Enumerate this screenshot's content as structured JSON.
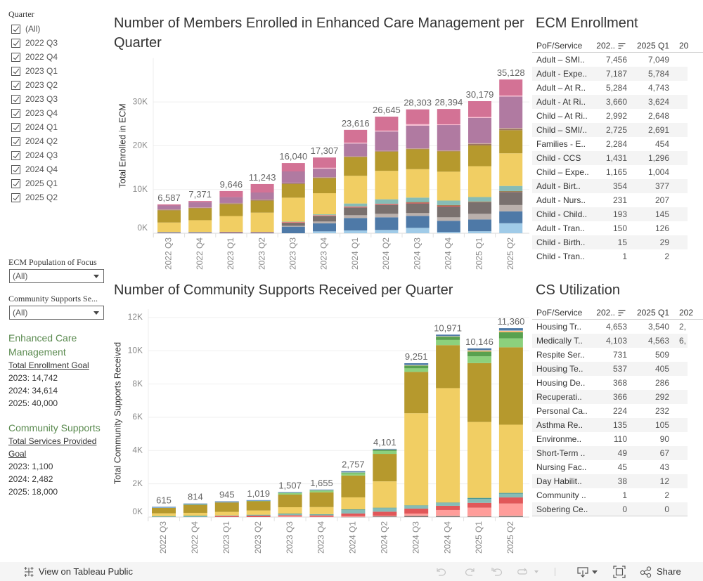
{
  "filters": {
    "quarter": {
      "label": "Quarter",
      "options": [
        {
          "label": "(All)",
          "checked": true
        },
        {
          "label": "2022 Q3",
          "checked": true
        },
        {
          "label": "2022 Q4",
          "checked": true
        },
        {
          "label": "2023 Q1",
          "checked": true
        },
        {
          "label": "2023 Q2",
          "checked": true
        },
        {
          "label": "2023 Q3",
          "checked": true
        },
        {
          "label": "2023 Q4",
          "checked": true
        },
        {
          "label": "2024 Q1",
          "checked": true
        },
        {
          "label": "2024 Q2",
          "checked": true
        },
        {
          "label": "2024 Q3",
          "checked": true
        },
        {
          "label": "2024 Q4",
          "checked": true
        },
        {
          "label": "2025 Q1",
          "checked": true
        },
        {
          "label": "2025 Q2",
          "checked": true
        }
      ]
    },
    "ecm_pof": {
      "label": "ECM Population of Focus",
      "value": "(All)"
    },
    "cs_service": {
      "label": "Community Supports Se...",
      "value": "(All)"
    }
  },
  "goals": {
    "ecm": {
      "heading": "Enhanced Care Management",
      "subheading": "Total Enrollment Goal",
      "lines": [
        "2023: 14,742",
        "2024: 34,614",
        "2025: 40,000"
      ]
    },
    "cs": {
      "heading": "Community Supports",
      "subheading": "Total Services Provided Goal",
      "lines": [
        "2023: 1,100",
        "2024: 2,482",
        "2025: 18,000"
      ]
    }
  },
  "ecm_table": {
    "title": "ECM Enrollment",
    "columns": [
      "PoF/Service",
      "202..",
      "2025 Q1",
      "20"
    ],
    "rows": [
      {
        "name": "Adult – SMI..",
        "v1": "7,456",
        "v2": "7,049",
        "v3": ""
      },
      {
        "name": "Adult - Expe..",
        "v1": "7,187",
        "v2": "5,784",
        "v3": ""
      },
      {
        "name": "Adult – At R..",
        "v1": "5,284",
        "v2": "4,743",
        "v3": ""
      },
      {
        "name": "Adult - At Ri..",
        "v1": "3,660",
        "v2": "3,624",
        "v3": ""
      },
      {
        "name": "Child – At Ri..",
        "v1": "2,992",
        "v2": "2,648",
        "v3": ""
      },
      {
        "name": "Child – SMI/..",
        "v1": "2,725",
        "v2": "2,691",
        "v3": ""
      },
      {
        "name": "Families - E..",
        "v1": "2,284",
        "v2": "454",
        "v3": ""
      },
      {
        "name": "Child - CCS",
        "v1": "1,431",
        "v2": "1,296",
        "v3": ""
      },
      {
        "name": "Child – Expe..",
        "v1": "1,165",
        "v2": "1,004",
        "v3": ""
      },
      {
        "name": "Adult - Birt..",
        "v1": "354",
        "v2": "377",
        "v3": ""
      },
      {
        "name": "Adult - Nurs..",
        "v1": "231",
        "v2": "207",
        "v3": ""
      },
      {
        "name": "Child - Child..",
        "v1": "193",
        "v2": "145",
        "v3": ""
      },
      {
        "name": "Adult - Tran..",
        "v1": "150",
        "v2": "126",
        "v3": ""
      },
      {
        "name": "Child - Birth..",
        "v1": "15",
        "v2": "29",
        "v3": ""
      },
      {
        "name": "Child - Tran..",
        "v1": "1",
        "v2": "2",
        "v3": ""
      }
    ]
  },
  "cs_table": {
    "title": "CS Utilization",
    "columns": [
      "PoF/Service",
      "202..",
      "2025 Q1",
      "202"
    ],
    "rows": [
      {
        "name": "Housing Tr..",
        "v1": "4,653",
        "v2": "3,540",
        "v3": "2,"
      },
      {
        "name": "Medically T..",
        "v1": "4,103",
        "v2": "4,563",
        "v3": "6,"
      },
      {
        "name": "Respite Ser..",
        "v1": "731",
        "v2": "509",
        "v3": ""
      },
      {
        "name": "Housing Te..",
        "v1": "537",
        "v2": "405",
        "v3": ""
      },
      {
        "name": "Housing De..",
        "v1": "368",
        "v2": "286",
        "v3": ""
      },
      {
        "name": "Recuperati..",
        "v1": "366",
        "v2": "292",
        "v3": ""
      },
      {
        "name": "Personal Ca..",
        "v1": "224",
        "v2": "232",
        "v3": ""
      },
      {
        "name": "Asthma Re..",
        "v1": "135",
        "v2": "105",
        "v3": ""
      },
      {
        "name": "Environme..",
        "v1": "110",
        "v2": "90",
        "v3": ""
      },
      {
        "name": "Short-Term ..",
        "v1": "49",
        "v2": "67",
        "v3": ""
      },
      {
        "name": "Nursing Fac..",
        "v1": "45",
        "v2": "43",
        "v3": ""
      },
      {
        "name": "Day Habilit..",
        "v1": "38",
        "v2": "12",
        "v3": ""
      },
      {
        "name": "Community ..",
        "v1": "1",
        "v2": "2",
        "v3": ""
      },
      {
        "name": "Sobering Ce..",
        "v1": "0",
        "v2": "0",
        "v3": ""
      }
    ]
  },
  "toolbar": {
    "view_on_tableau": "View on Tableau Public",
    "share": "Share",
    "icons": [
      "tableau-logo-icon",
      "undo-icon",
      "redo-icon",
      "revert-icon",
      "refresh-icon",
      "download-icon",
      "fullscreen-icon",
      "share-icon"
    ]
  },
  "chart_data": [
    {
      "type": "bar",
      "stacked": true,
      "title": "Number of Members Enrolled in Enhanced Care Management per Quarter",
      "xlabel": "",
      "ylabel": "Total Enrolled in ECM",
      "ylim": [
        0,
        40000
      ],
      "yticks": [
        0,
        10000,
        20000,
        30000
      ],
      "ytick_labels": [
        "0K",
        "10K",
        "20K",
        "30K"
      ],
      "grid": true,
      "legend": "none",
      "categories": [
        "2022 Q3",
        "2022 Q4",
        "2023 Q1",
        "2023 Q2",
        "2023 Q3",
        "2023 Q4",
        "2024 Q1",
        "2024 Q2",
        "2024 Q3",
        "2024 Q4",
        "2025 Q1",
        "2025 Q2"
      ],
      "totals": [
        6587,
        7371,
        9646,
        11243,
        16040,
        17307,
        23616,
        26645,
        28303,
        28394,
        30179,
        35128
      ],
      "total_labels": [
        "6,587",
        "7,371",
        "9,646",
        "11,243",
        "16,040",
        "17,307",
        "23,616",
        "26,645",
        "28,303",
        "28,394",
        "30,179",
        "35,128"
      ],
      "series": [
        {
          "name": "Families - E..",
          "color": "#a0cbe8",
          "values": [
            0,
            0,
            0,
            0,
            0,
            430,
            640,
            750,
            1230,
            270,
            454,
            2284
          ]
        },
        {
          "name": "Child – SMI/..",
          "color": "#4e79a7",
          "values": [
            120,
            130,
            80,
            80,
            1500,
            1820,
            2840,
            2890,
            2740,
            2570,
            2691,
            2725
          ]
        },
        {
          "name": "Child - CCS",
          "color": "#bab0ac",
          "values": [
            0,
            0,
            0,
            0,
            200,
            430,
            640,
            800,
            640,
            800,
            1296,
            1431
          ]
        },
        {
          "name": "Child – At Ri..",
          "color": "#79706e",
          "values": [
            0,
            0,
            0,
            0,
            700,
            1290,
            1770,
            2090,
            2200,
            2470,
            2648,
            2992
          ]
        },
        {
          "name": "Child - Child..",
          "color": "#e15759",
          "values": [
            60,
            60,
            150,
            140,
            150,
            150,
            200,
            200,
            300,
            320,
            145,
            193
          ]
        },
        {
          "name": "Child - Birth..",
          "color": "#ff9d9a",
          "values": [
            0,
            0,
            0,
            0,
            5,
            5,
            10,
            10,
            15,
            15,
            29,
            15
          ]
        },
        {
          "name": "Child - Tran..",
          "color": "#59a14f",
          "values": [
            0,
            0,
            0,
            0,
            0,
            0,
            0,
            0,
            1,
            1,
            2,
            1
          ]
        },
        {
          "name": "Child – Expe..",
          "color": "#86bcb6",
          "values": [
            120,
            110,
            100,
            90,
            100,
            200,
            700,
            1020,
            1020,
            1020,
            1004,
            1165
          ]
        },
        {
          "name": "Adult – SMI..",
          "color": "#f1ce63",
          "values": [
            2150,
            2680,
            3600,
            4400,
            5470,
            4820,
            6320,
            6490,
            6490,
            6600,
            7049,
            7456
          ]
        },
        {
          "name": "Adult – At R..",
          "color": "#b6992d",
          "values": [
            2790,
            2730,
            2700,
            2740,
            3110,
            3430,
            4290,
            4400,
            4560,
            4650,
            4743,
            5284
          ]
        },
        {
          "name": "Adult - Birt..",
          "color": "#9d7660",
          "values": [
            150,
            120,
            200,
            180,
            200,
            180,
            100,
            150,
            150,
            150,
            377,
            354
          ]
        },
        {
          "name": "Adult - Tran..",
          "color": "#d7b5a6",
          "values": [
            50,
            40,
            80,
            70,
            60,
            70,
            50,
            50,
            50,
            50,
            126,
            150
          ]
        },
        {
          "name": "Adult - Expe..",
          "color": "#b07aa1",
          "values": [
            900,
            1230,
            1340,
            1610,
            2630,
            1930,
            2950,
            4400,
            5200,
            5800,
            5784,
            7187
          ]
        },
        {
          "name": "Adult - Nurs..",
          "color": "#fabfd2",
          "values": [
            0,
            0,
            0,
            0,
            0,
            200,
            200,
            200,
            320,
            170,
            207,
            231
          ]
        },
        {
          "name": "Adult - At Ri..",
          "color": "#d37295",
          "values": [
            247,
            271,
            1396,
            1933,
            1915,
            2352,
            2906,
            3195,
            3387,
            3508,
            3624,
            3660
          ]
        }
      ]
    },
    {
      "type": "bar",
      "stacked": true,
      "title": "Number of Community Supports Received per Quarter",
      "xlabel": "",
      "ylabel": "Total Community Supports Received",
      "ylim": [
        0,
        12500
      ],
      "yticks": [
        0,
        2000,
        4000,
        6000,
        8000,
        10000,
        12000
      ],
      "ytick_labels": [
        "0K",
        "2K",
        "4K",
        "6K",
        "8K",
        "10K",
        "12K"
      ],
      "grid": true,
      "legend": "none",
      "categories": [
        "2022 Q3",
        "2022 Q4",
        "2023 Q1",
        "2023 Q2",
        "2023 Q3",
        "2023 Q4",
        "2024 Q1",
        "2024 Q2",
        "2024 Q3",
        "2024 Q4",
        "2025 Q1",
        "2025 Q2"
      ],
      "totals": [
        615,
        814,
        945,
        1019,
        1507,
        1655,
        2757,
        4101,
        9251,
        10971,
        10146,
        11360
      ],
      "total_labels": [
        "615",
        "814",
        "945",
        "1,019",
        "1,507",
        "1,655",
        "2,757",
        "4,101",
        "9,251",
        "10,971",
        "10,146",
        "11,360"
      ],
      "series": [
        {
          "name": "Nursing Fac..",
          "color": "#79706e",
          "values": [
            0,
            0,
            0,
            0,
            0,
            0,
            5,
            40,
            60,
            50,
            43,
            45
          ]
        },
        {
          "name": "Day Habilit..",
          "color": "#bab0ac",
          "values": [
            0,
            0,
            0,
            0,
            0,
            0,
            5,
            15,
            25,
            35,
            12,
            38
          ]
        },
        {
          "name": "Sobering Ce..",
          "color": "#d4a6c8",
          "values": [
            0,
            0,
            0,
            0,
            0,
            0,
            0,
            0,
            0,
            0,
            0,
            0
          ]
        },
        {
          "name": "Respite Ser..",
          "color": "#ff9d9a",
          "values": [
            0,
            0,
            0,
            0,
            55,
            20,
            50,
            30,
            127,
            339,
            509,
            731
          ]
        },
        {
          "name": "Recuperati..",
          "color": "#e15759",
          "values": [
            0,
            0,
            70,
            85,
            55,
            80,
            155,
            240,
            297,
            254,
            292,
            366
          ]
        },
        {
          "name": "Personal Ca..",
          "color": "#86bcb6",
          "values": [
            40,
            60,
            30,
            40,
            80,
            60,
            230,
            220,
            180,
            180,
            232,
            224
          ]
        },
        {
          "name": "Short-Term ..",
          "color": "#499894",
          "values": [
            15,
            25,
            0,
            15,
            20,
            15,
            20,
            20,
            18,
            18,
            67,
            49
          ]
        },
        {
          "name": "Medically T..",
          "color": "#f1ce63",
          "values": [
            170,
            170,
            212,
            255,
            382,
            424,
            720,
            1582,
            5537,
            6878,
            4563,
            4103
          ]
        },
        {
          "name": "Housing Tr..",
          "color": "#b6992d",
          "values": [
            325,
            480,
            583,
            565,
            763,
            890,
            1314,
            1653,
            2486,
            2585,
            3540,
            4653
          ]
        },
        {
          "name": "Housing Te..",
          "color": "#8cd17d",
          "values": [
            0,
            20,
            0,
            15,
            85,
            113,
            141,
            170,
            212,
            311,
            405,
            537
          ]
        },
        {
          "name": "Housing De..",
          "color": "#59a14f",
          "values": [
            0,
            10,
            0,
            15,
            40,
            20,
            42,
            70,
            170,
            198,
            286,
            368
          ]
        },
        {
          "name": "Environme..",
          "color": "#ffbe7d",
          "values": [
            0,
            0,
            0,
            0,
            0,
            5,
            20,
            25,
            40,
            40,
            90,
            110
          ]
        },
        {
          "name": "Community ..",
          "color": "#a0cbe8",
          "values": [
            25,
            10,
            5,
            4,
            2,
            1,
            2,
            2,
            2,
            2,
            2,
            1
          ]
        },
        {
          "name": "Asthma Re..",
          "color": "#4e79a7",
          "values": [
            40,
            39,
            45,
            25,
            25,
            27,
            53,
            34,
            97,
            81,
            105,
            135
          ]
        }
      ]
    }
  ]
}
